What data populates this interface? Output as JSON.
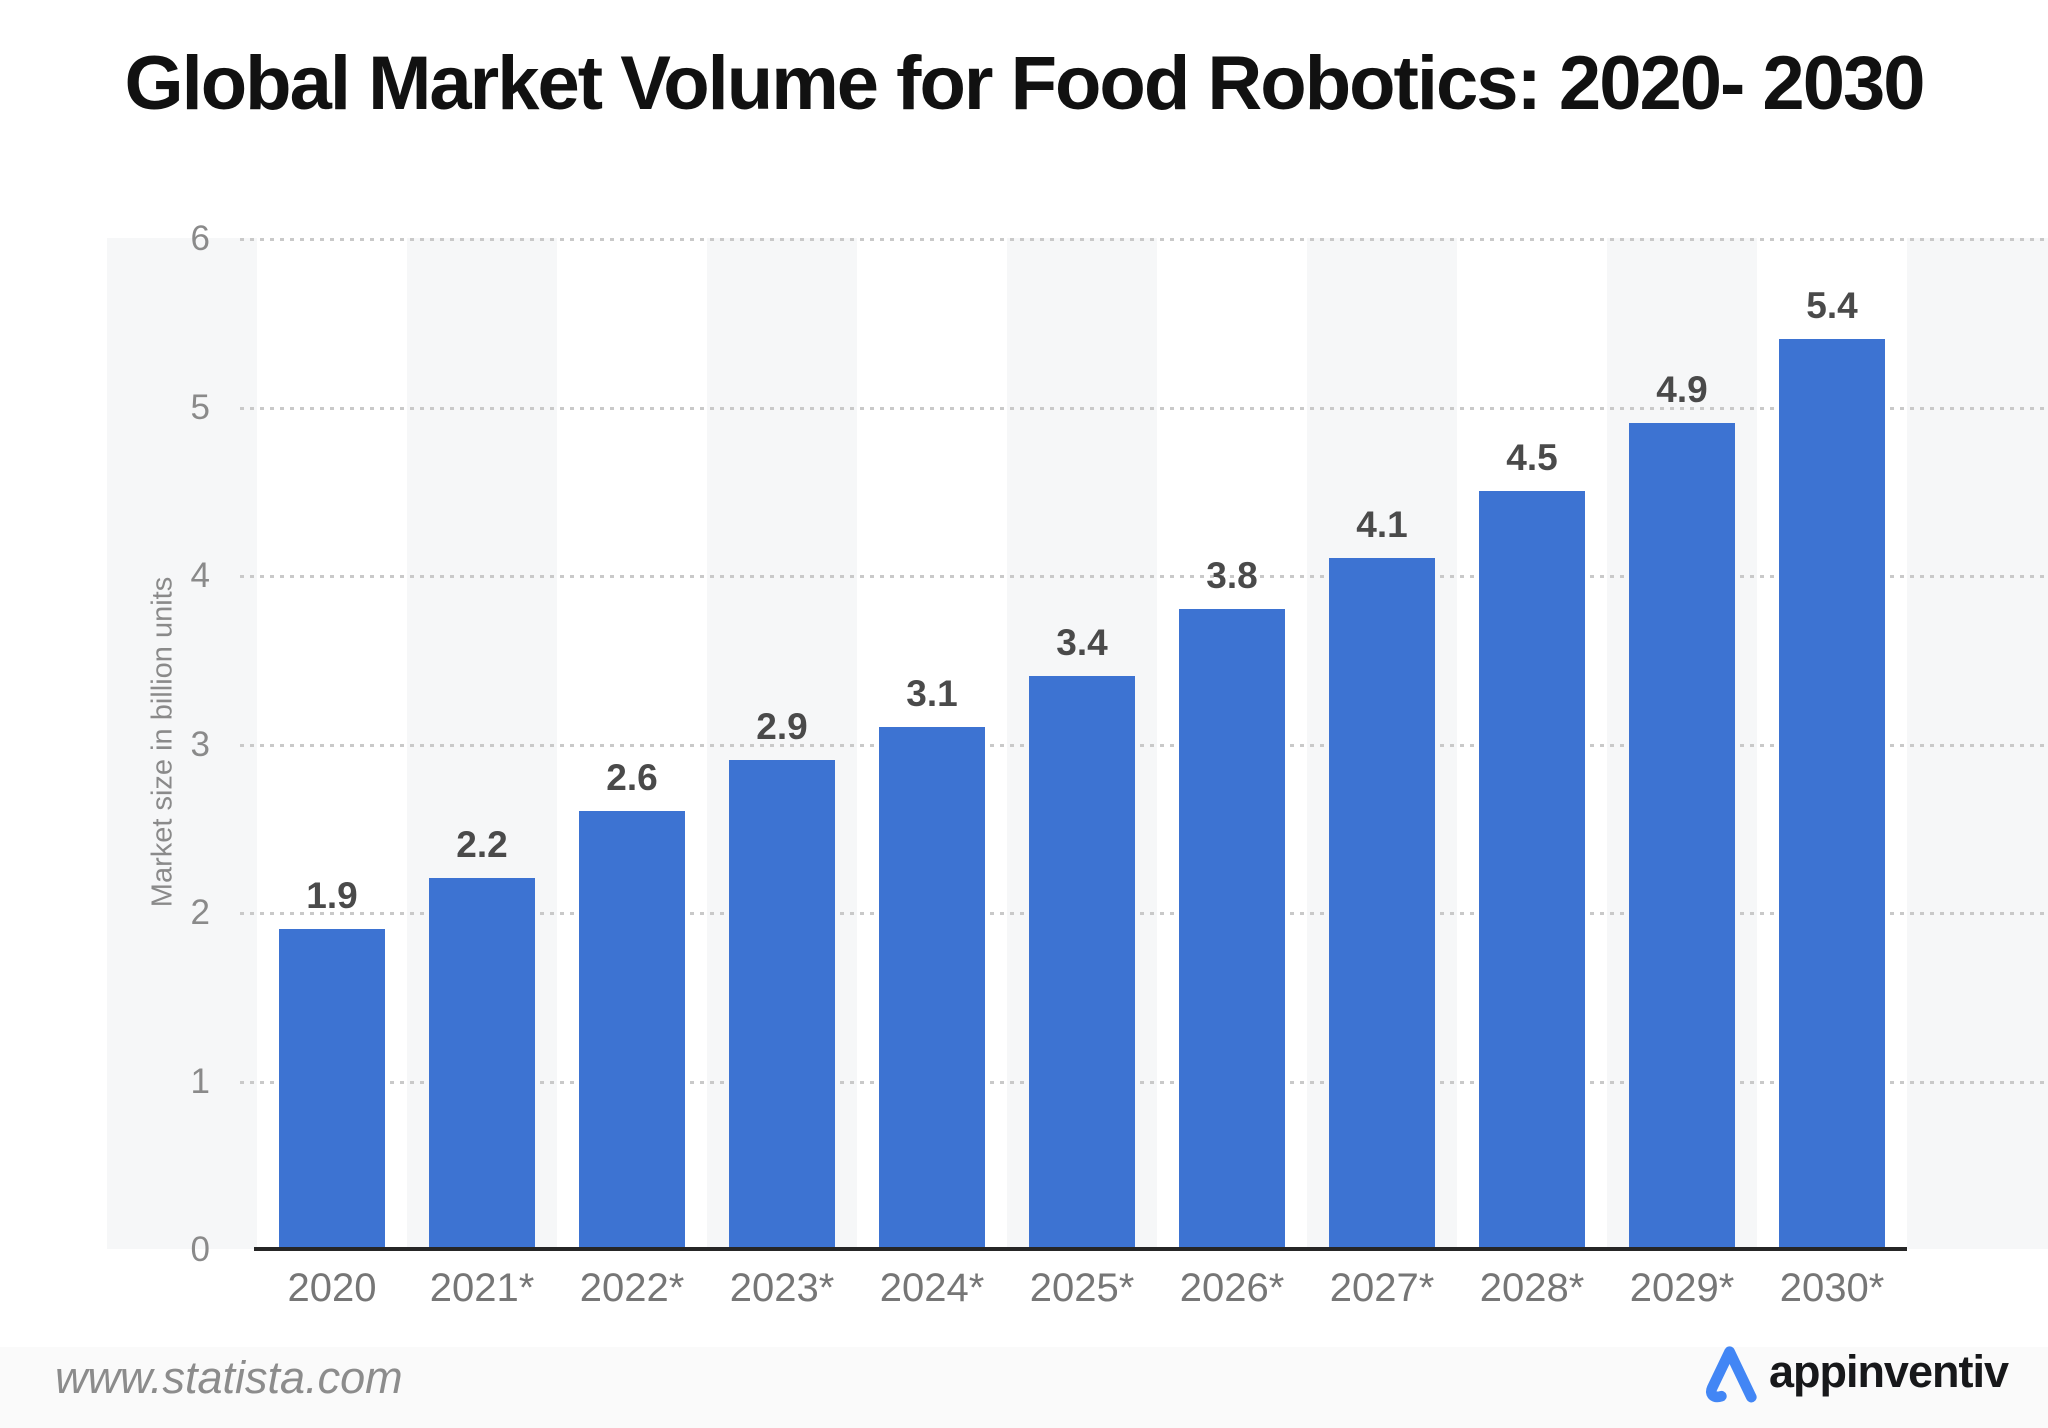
{
  "title": "Global Market Volume for Food Robotics: 2020- 2030",
  "chart_data": {
    "type": "bar",
    "title": "Global Market Volume for Food Robotics: 2020- 2030",
    "categories": [
      "2020",
      "2021*",
      "2022*",
      "2023*",
      "2024*",
      "2025*",
      "2026*",
      "2027*",
      "2028*",
      "2029*",
      "2030*"
    ],
    "values": [
      1.9,
      2.2,
      2.6,
      2.9,
      3.1,
      3.4,
      3.8,
      4.1,
      4.5,
      4.9,
      5.4
    ],
    "xlabel": "",
    "ylabel": "Market size in billion units",
    "ylim": [
      0,
      6
    ],
    "yticks": [
      0,
      1,
      2,
      3,
      4,
      5,
      6
    ],
    "grid": "horizontal-dotted",
    "legend": "none",
    "bar_color": "#3d73d2",
    "stripe_color": "#f6f7f8",
    "gridline_color": "#c9c9c9",
    "label_color": "#4a4a4a",
    "axis_text_color": "#8a8a8a"
  },
  "footer": {
    "source": "www.statista.com",
    "brand_name": "appinventiv",
    "brand_accent_color": "#4286f5"
  }
}
